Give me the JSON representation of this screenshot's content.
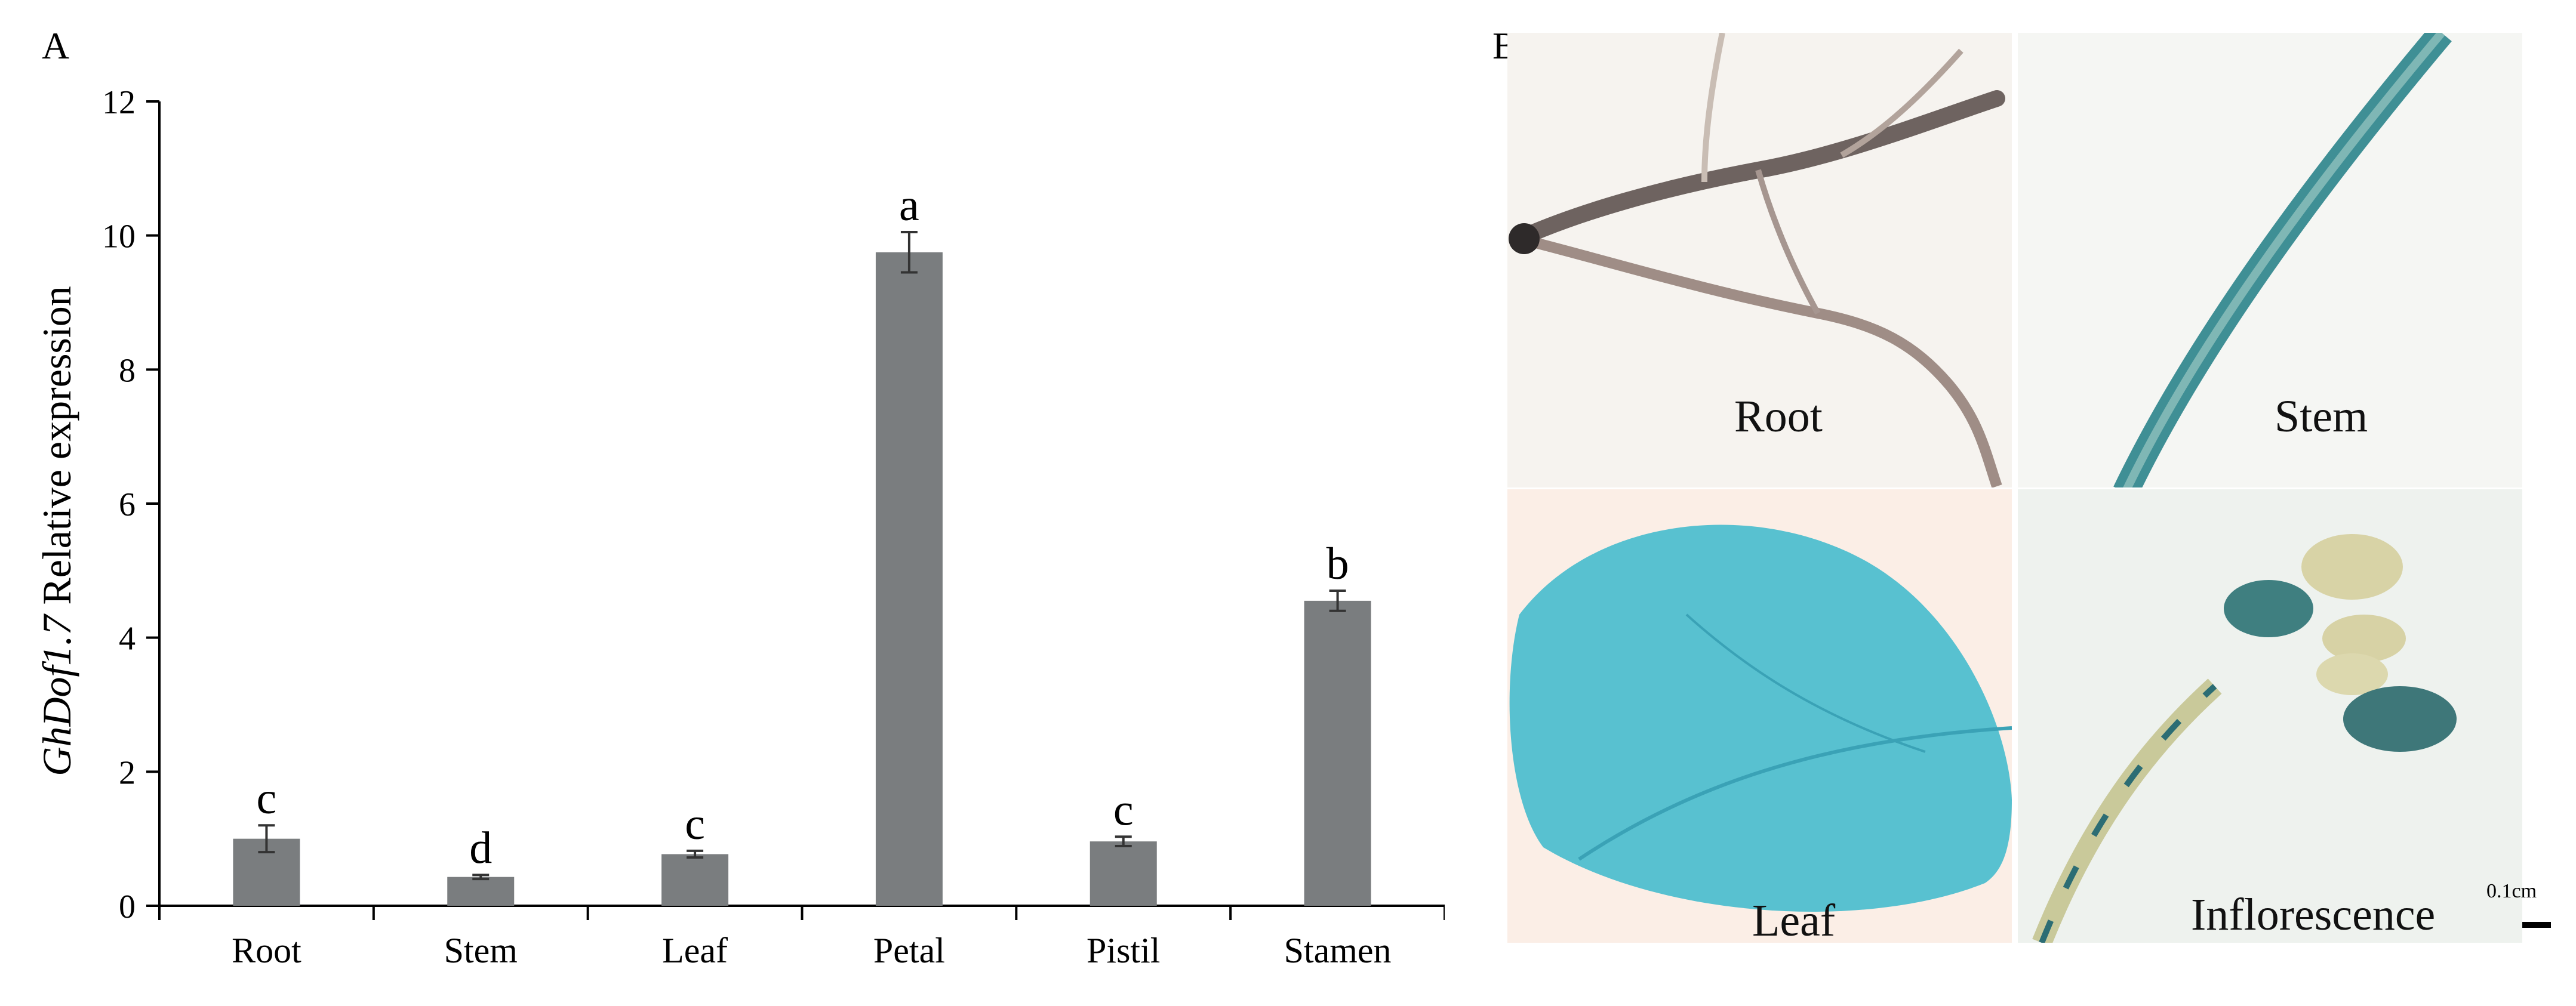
{
  "panels": {
    "a_letter": "A",
    "b_letter": "B"
  },
  "colors": {
    "bar": "#7a7d7f",
    "axis": "#000000",
    "stain": "#3fb3c6"
  },
  "chart_data": {
    "type": "bar",
    "title": "",
    "xlabel": "",
    "ylabel_gene": "GhDof1.7",
    "ylabel_rest": " Relative expression",
    "ylim": [
      0,
      12
    ],
    "yticks": [
      0,
      2,
      4,
      6,
      8,
      10,
      12
    ],
    "categories": [
      "Root",
      "Stem",
      "Leaf",
      "Petal",
      "Pistil",
      "Stamen"
    ],
    "values": [
      1.0,
      0.43,
      0.77,
      9.75,
      0.96,
      4.55
    ],
    "errors": [
      0.2,
      0.03,
      0.05,
      0.3,
      0.07,
      0.15
    ],
    "significance": [
      "c",
      "d",
      "c",
      "a",
      "c",
      "b"
    ]
  },
  "photos": [
    {
      "label": "Root",
      "icon": "root-tissue-photo"
    },
    {
      "label": "Stem",
      "icon": "stem-tissue-photo"
    },
    {
      "label": "Leaf",
      "icon": "leaf-tissue-photo"
    },
    {
      "label": "Inflorescence",
      "icon": "inflorescence-tissue-photo"
    }
  ],
  "scale_bar": {
    "label": "0.1cm"
  }
}
